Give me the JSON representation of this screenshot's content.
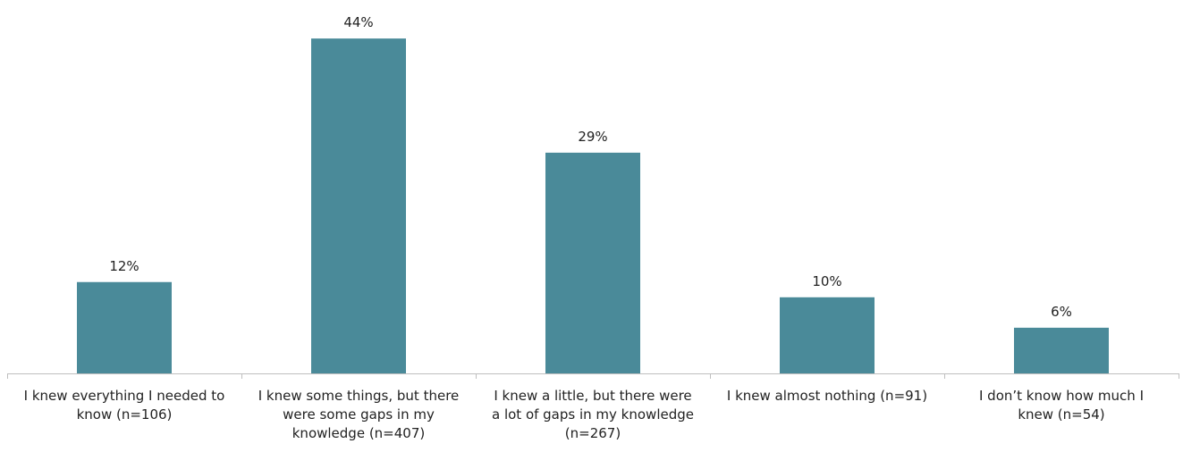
{
  "chart_data": {
    "type": "bar",
    "categories": [
      [
        "I knew everything I needed to",
        "know (n=106)"
      ],
      [
        "I knew some things, but there",
        "were some gaps in my",
        "knowledge (n=407)"
      ],
      [
        "I knew a little, but there were",
        "a lot of gaps in my knowledge",
        "(n=267)"
      ],
      [
        "I knew almost nothing  (n=91)"
      ],
      [
        "I don’t know how much I",
        "knew (n=54)"
      ]
    ],
    "values": [
      12,
      44,
      29,
      10,
      6
    ],
    "data_labels": [
      "12%",
      "44%",
      "29%",
      "10%",
      "6%"
    ],
    "ylim": [
      0,
      50
    ],
    "grid": false,
    "legend": "none",
    "bar_color": "#4a8a99",
    "axis_color": "#bfbfbf"
  }
}
